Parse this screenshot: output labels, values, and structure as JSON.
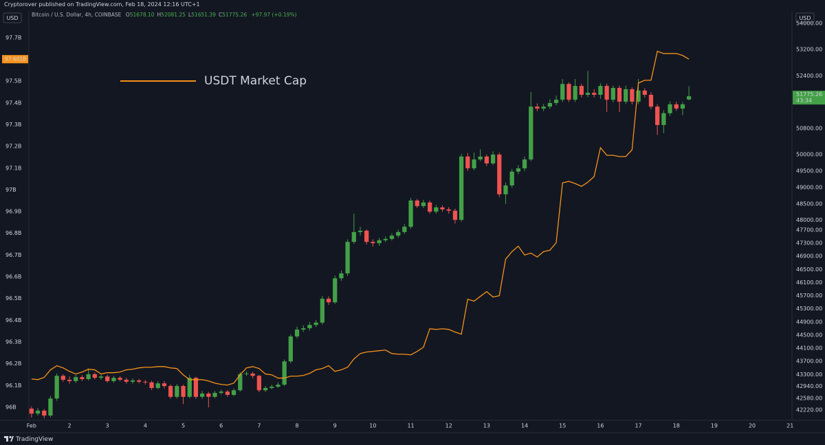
{
  "header": {
    "publisher": "Cryptorover published on TradingView.com, Feb 18, 2024 12:16 UTC+1"
  },
  "footer": {
    "brand": "TradingView"
  },
  "chart_data": {
    "type": "candlestick",
    "currency_left": "USD",
    "currency_right": "USD",
    "legend": [
      {
        "key": "O",
        "value": "51678.10"
      },
      {
        "key": "H",
        "value": "52081.25"
      },
      {
        "key": "L",
        "value": "51651.39"
      },
      {
        "key": "C",
        "value": "51775.26"
      }
    ],
    "change": "+97.97 (+0.19%)",
    "x": [
      1,
      1.167,
      1.333,
      1.5,
      1.667,
      1.833,
      2,
      2.167,
      2.333,
      2.5,
      2.667,
      2.833,
      3,
      3.167,
      3.333,
      3.5,
      3.667,
      3.833,
      4,
      4.167,
      4.333,
      4.5,
      4.667,
      4.833,
      5,
      5.167,
      5.333,
      5.5,
      5.667,
      5.833,
      6,
      6.167,
      6.333,
      6.5,
      6.667,
      6.833,
      7,
      7.167,
      7.333,
      7.5,
      7.667,
      7.833,
      8,
      8.167,
      8.333,
      8.5,
      8.667,
      8.833,
      9,
      9.167,
      9.333,
      9.5,
      9.667,
      9.833,
      10,
      10.167,
      10.333,
      10.5,
      10.667,
      10.833,
      11,
      11.167,
      11.333,
      11.5,
      11.667,
      11.833,
      12,
      12.167,
      12.333,
      12.5,
      12.667,
      12.833,
      13,
      13.167,
      13.333,
      13.5,
      13.667,
      13.833,
      14,
      14.167,
      14.333,
      14.5,
      14.667,
      14.833,
      15,
      15.167,
      15.333,
      15.5,
      15.667,
      15.833,
      16,
      16.167,
      16.333,
      16.5,
      16.667,
      16.833,
      17,
      17.167,
      17.333,
      17.5,
      17.667,
      17.833,
      18,
      18.167,
      18.333
    ],
    "xlim": [
      0.93,
      21.05
    ],
    "xticks": [
      {
        "value": 1,
        "label": "Feb"
      },
      2,
      3,
      4,
      5,
      6,
      7,
      8,
      9,
      10,
      11,
      12,
      13,
      14,
      15,
      16,
      17,
      18,
      19,
      20,
      21
    ],
    "ylim": [
      95.94,
      97.81
    ],
    "yticks": [
      {
        "value": 96,
        "label": "96B"
      },
      {
        "value": 96.1,
        "label": "96.1B"
      },
      {
        "value": 96.2,
        "label": "96.2B"
      },
      {
        "value": 96.3,
        "label": "96.3B"
      },
      {
        "value": 96.4,
        "label": "96.4B"
      },
      {
        "value": 96.5,
        "label": "96.5B"
      },
      {
        "value": 96.6,
        "label": "96.6B"
      },
      {
        "value": 96.7,
        "label": "96.7B"
      },
      {
        "value": 96.8,
        "label": "96.8B"
      },
      {
        "value": 96.9,
        "label": "96.9B"
      },
      {
        "value": 97,
        "label": "97B"
      },
      {
        "value": 97.1,
        "label": "97.1B"
      },
      {
        "value": 97.2,
        "label": "97.2B"
      },
      {
        "value": 97.3,
        "label": "97.3B"
      },
      {
        "value": 97.4,
        "label": "97.4B"
      },
      {
        "value": 97.5,
        "label": "97.5B"
      },
      {
        "value": 97.7,
        "label": "97.7B"
      }
    ],
    "y2lim": [
      41906,
      54289
    ],
    "y2ticks": [
      {
        "value": 54000,
        "label": "54000.00"
      },
      {
        "value": 53200,
        "label": "53200.00"
      },
      {
        "value": 52400,
        "label": "52400.00"
      },
      {
        "value": 50800,
        "label": "50800.00"
      },
      {
        "value": 50000,
        "label": "50000.00"
      },
      {
        "value": 49500,
        "label": "49500.00"
      },
      {
        "value": 49000,
        "label": "49000.00"
      },
      {
        "value": 48500,
        "label": "48500.00"
      },
      {
        "value": 48000,
        "label": "48000.00"
      },
      {
        "value": 47700,
        "label": "47700.00"
      },
      {
        "value": 47300,
        "label": "47300.00"
      },
      {
        "value": 46900,
        "label": "46900.00"
      },
      {
        "value": 46500,
        "label": "46500.00"
      },
      {
        "value": 46100,
        "label": "46100.00"
      },
      {
        "value": 45700,
        "label": "45700.00"
      },
      {
        "value": 45300,
        "label": "45300.00"
      },
      {
        "value": 44900,
        "label": "44900.00"
      },
      {
        "value": 44500,
        "label": "44500.00"
      },
      {
        "value": 44100,
        "label": "44100.00"
      },
      {
        "value": 43700,
        "label": "43700.00"
      },
      {
        "value": 43300,
        "label": "43300.00"
      },
      {
        "value": 42940,
        "label": "42940.00"
      },
      {
        "value": 42580,
        "label": "42580.00"
      },
      {
        "value": 42220,
        "label": "42220.00"
      }
    ],
    "series": [
      {
        "name": "Bitcoin / U.S. Dollar, 4h, COINBASE",
        "type": "candlestick",
        "axis": "y2",
        "up_color": "#43a047",
        "down_color": "#ef5350",
        "last_value_label": "51775.26",
        "countdown": "43:34",
        "open": [
          42260,
          42110,
          42200,
          42050,
          42570,
          43260,
          43140,
          43100,
          43220,
          43160,
          43310,
          43200,
          43240,
          43100,
          43200,
          43140,
          43080,
          43120,
          43080,
          43060,
          42890,
          43030,
          42950,
          42620,
          42950,
          42620,
          43200,
          42620,
          42720,
          42620,
          42740,
          42780,
          42680,
          42820,
          43310,
          43330,
          43260,
          42820,
          42890,
          42930,
          42990,
          43700,
          44460,
          44670,
          44710,
          44810,
          44880,
          45610,
          45500,
          46230,
          46380,
          47340,
          47640,
          47680,
          47340,
          47300,
          47390,
          47430,
          47530,
          47640,
          47800,
          48600,
          48430,
          48540,
          48260,
          48390,
          48330,
          48290,
          48010,
          49940,
          49580,
          49850,
          49940,
          49730,
          50000,
          48790,
          49060,
          49480,
          49580,
          49850,
          51460,
          51400,
          51460,
          51570,
          51670,
          52150,
          51670,
          52090,
          51820,
          51880,
          51820,
          52090,
          51670,
          52030,
          51610,
          51990,
          51610,
          51950,
          51820,
          51460,
          50900,
          51260,
          51530,
          51400,
          51678.1
        ],
        "high": [
          42330,
          42280,
          42250,
          42650,
          43330,
          43310,
          43240,
          43290,
          43280,
          43480,
          43360,
          43300,
          43290,
          43260,
          43250,
          43200,
          43180,
          43170,
          43130,
          43110,
          43090,
          43100,
          43000,
          43010,
          42990,
          43290,
          43230,
          42800,
          42770,
          42800,
          42840,
          42830,
          42880,
          43380,
          43400,
          43380,
          43290,
          42950,
          42990,
          43060,
          43760,
          44520,
          44760,
          44800,
          44900,
          44960,
          45690,
          45680,
          46310,
          46470,
          47420,
          48200,
          47800,
          47720,
          47420,
          47460,
          47500,
          47600,
          47720,
          47880,
          48680,
          48650,
          48620,
          48600,
          48460,
          48450,
          48400,
          48350,
          50020,
          50050,
          50060,
          50160,
          50000,
          50100,
          50060,
          49150,
          49560,
          49680,
          49940,
          51900,
          51560,
          51540,
          51680,
          51800,
          52300,
          52200,
          52300,
          52160,
          52550,
          51990,
          52170,
          52160,
          52100,
          52100,
          52100,
          52050,
          52300,
          52020,
          51900,
          51530,
          51350,
          51620,
          51610,
          51600,
          52081.25
        ],
        "low": [
          41990,
          42050,
          41960,
          42000,
          42500,
          43080,
          43020,
          43040,
          43100,
          43120,
          43150,
          43140,
          43050,
          43050,
          43090,
          43020,
          43020,
          43030,
          43000,
          42830,
          42850,
          42880,
          42560,
          42570,
          42400,
          42580,
          42560,
          42560,
          42300,
          42580,
          42690,
          42620,
          42640,
          42780,
          43260,
          43180,
          42760,
          42770,
          42850,
          42890,
          42950,
          43650,
          44400,
          44600,
          44640,
          44750,
          44820,
          45420,
          45450,
          46150,
          46300,
          47280,
          47540,
          47260,
          47200,
          47220,
          47330,
          47380,
          47470,
          47580,
          47740,
          48370,
          48370,
          48200,
          48200,
          48260,
          48200,
          47900,
          47960,
          49500,
          49520,
          49800,
          49650,
          49680,
          48700,
          48500,
          48990,
          49400,
          49500,
          49800,
          51320,
          51320,
          51390,
          51500,
          51600,
          51600,
          51600,
          51740,
          51750,
          51740,
          51700,
          51300,
          51590,
          51300,
          51540,
          51530,
          51540,
          51740,
          51380,
          50600,
          50650,
          51180,
          51330,
          51200,
          51651.39
        ],
        "close": [
          42110,
          42200,
          42050,
          42570,
          43260,
          43140,
          43100,
          43220,
          43160,
          43310,
          43200,
          43240,
          43100,
          43200,
          43140,
          43080,
          43120,
          43080,
          43060,
          42890,
          43030,
          42950,
          42620,
          42950,
          42620,
          43200,
          42620,
          42720,
          42620,
          42740,
          42780,
          42680,
          42820,
          43310,
          43330,
          43260,
          42820,
          42890,
          42930,
          42990,
          43700,
          44460,
          44670,
          44710,
          44810,
          44880,
          45610,
          45500,
          46230,
          46380,
          47340,
          47640,
          47680,
          47340,
          47300,
          47390,
          47430,
          47530,
          47640,
          47800,
          48600,
          48430,
          48540,
          48260,
          48390,
          48330,
          48290,
          48010,
          49940,
          49580,
          49850,
          49940,
          49730,
          50000,
          48790,
          49060,
          49480,
          49580,
          49850,
          51460,
          51400,
          51460,
          51570,
          51670,
          52150,
          51670,
          52090,
          51820,
          51880,
          51820,
          52090,
          51670,
          52030,
          51610,
          51990,
          51610,
          51950,
          51820,
          51460,
          50900,
          51260,
          51530,
          51400,
          51530,
          51775.26
        ]
      },
      {
        "name": "USDT Market Cap",
        "type": "line",
        "axis": "y",
        "color": "#f7931a",
        "last_value_label": "97.601B",
        "values": [
          96.13,
          96.127,
          96.137,
          96.172,
          96.191,
          96.181,
          96.165,
          96.153,
          96.162,
          96.175,
          96.172,
          96.153,
          96.159,
          96.159,
          96.162,
          96.172,
          96.175,
          96.181,
          96.184,
          96.184,
          96.187,
          96.187,
          96.181,
          96.178,
          96.149,
          96.127,
          96.127,
          96.127,
          96.121,
          96.111,
          96.105,
          96.102,
          96.111,
          96.149,
          96.181,
          96.187,
          96.178,
          96.153,
          96.149,
          96.134,
          96.134,
          96.143,
          96.143,
          96.146,
          96.156,
          96.172,
          96.178,
          96.191,
          96.165,
          96.172,
          96.184,
          96.222,
          96.247,
          96.254,
          96.257,
          96.26,
          96.263,
          96.247,
          96.244,
          96.244,
          96.241,
          96.257,
          96.276,
          96.361,
          96.358,
          96.361,
          96.358,
          96.346,
          96.336,
          96.497,
          96.488,
          96.51,
          96.532,
          96.507,
          96.513,
          96.681,
          96.716,
          96.741,
          96.7,
          96.709,
          96.691,
          96.716,
          96.722,
          96.757,
          97.032,
          97.039,
          97.029,
          97.016,
          97.035,
          97.061,
          97.194,
          97.159,
          97.159,
          97.153,
          97.153,
          97.184,
          97.491,
          97.504,
          97.504,
          97.637,
          97.627,
          97.627,
          97.627,
          97.618,
          97.601
        ]
      }
    ]
  }
}
